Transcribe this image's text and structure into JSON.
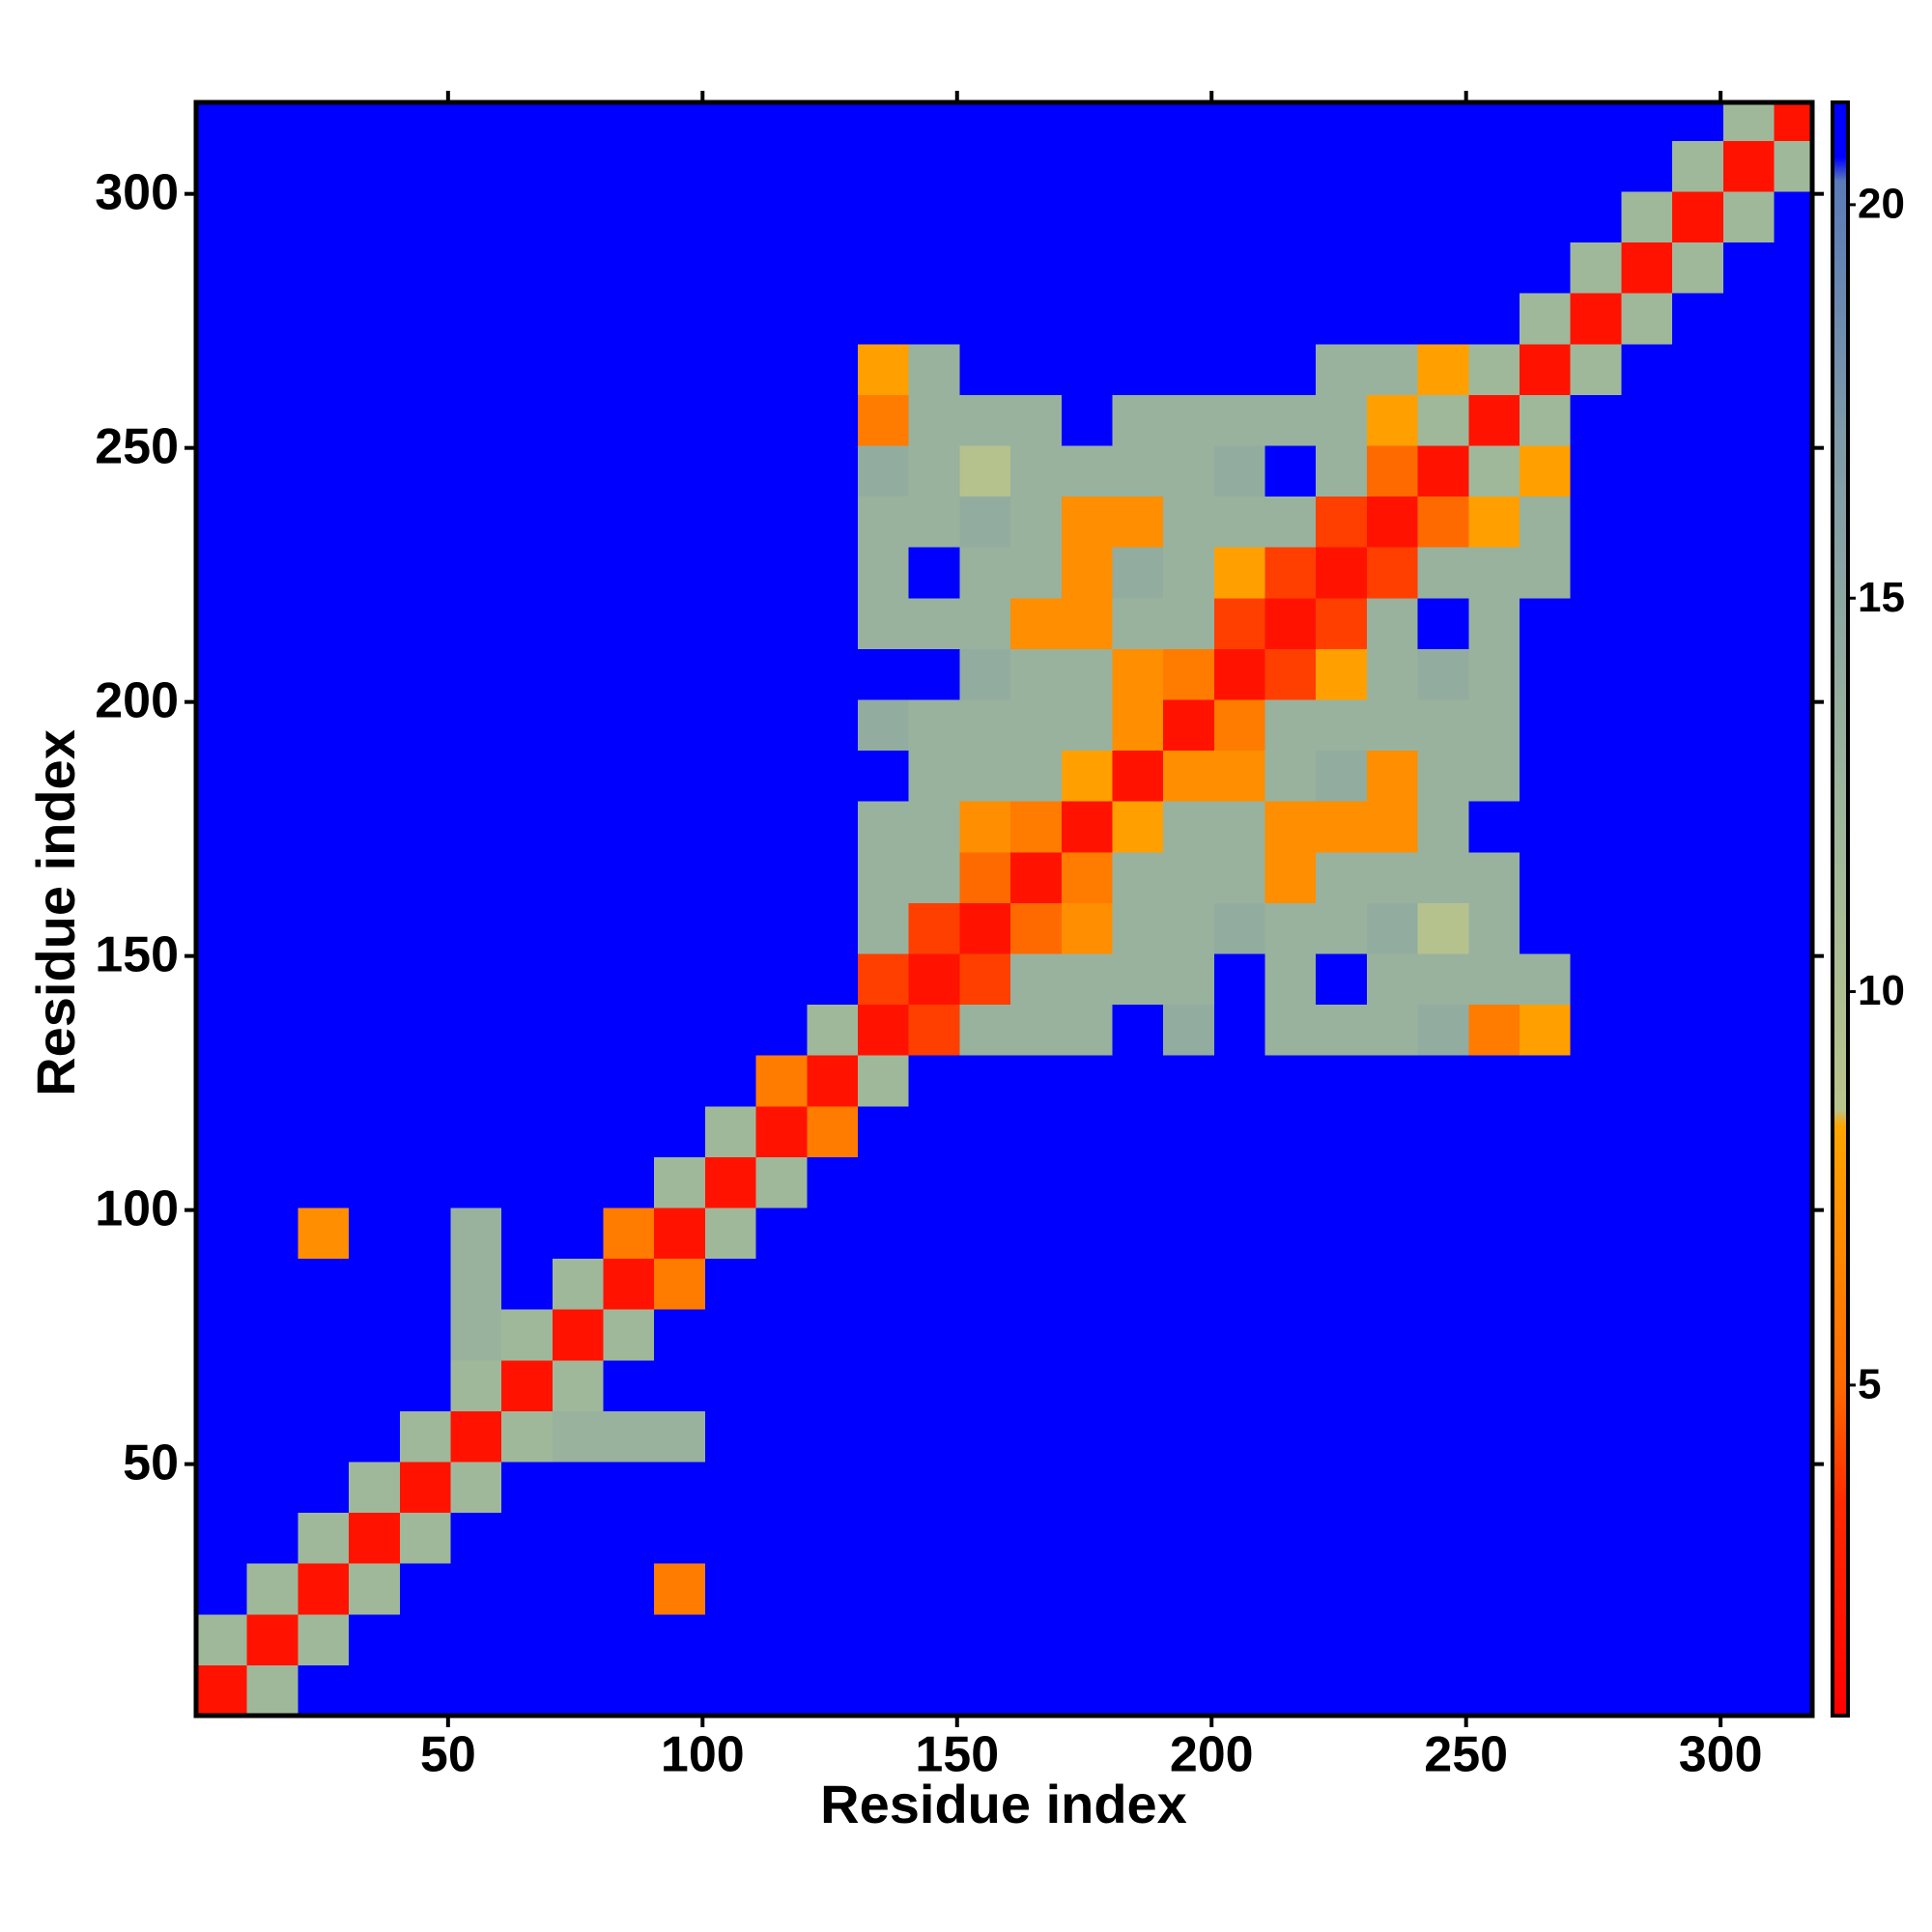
{
  "chart_data": {
    "type": "heatmap",
    "x_label": "Residue index",
    "y_label": "Residue index",
    "xbins": [
      0.5,
      10.5,
      20.5,
      30.5,
      40.5,
      50.5,
      60.5,
      70.5,
      80.5,
      90.5,
      100.5,
      110.5,
      120.5,
      130.5,
      140.5,
      150.5,
      160.5,
      170.5,
      180.5,
      190.5,
      200.5,
      210.5,
      220.5,
      230.5,
      240.5,
      250.5,
      260.5,
      270.5,
      280.5,
      290.5,
      300.5,
      310.5,
      318
    ],
    "ybins": [
      0.5,
      10.5,
      20.5,
      30.5,
      40.5,
      50.5,
      60.5,
      70.5,
      80.5,
      90.5,
      100.5,
      110.5,
      120.5,
      130.5,
      140.5,
      150.5,
      160.5,
      170.5,
      180.5,
      190.5,
      200.5,
      210.5,
      220.5,
      230.5,
      240.5,
      250.5,
      260.5,
      270.5,
      280.5,
      290.5,
      300.5,
      310.5,
      318
    ],
    "xlim": [
      0.5,
      318
    ],
    "ylim": [
      0.5,
      318
    ],
    "xticks": [
      50,
      100,
      150,
      200,
      250,
      300
    ],
    "yticks": [
      50,
      100,
      150,
      200,
      250,
      300
    ],
    "clim": [
      0.8,
      21.3
    ],
    "cticks": [
      5,
      10,
      15,
      20
    ],
    "colorscale": [
      {
        "value": 0.8,
        "color": "#ff0000"
      },
      {
        "value": 3.5,
        "color": "#ff2a00"
      },
      {
        "value": 5,
        "color": "#ff6a00"
      },
      {
        "value": 8.3,
        "color": "#ffa500"
      },
      {
        "value": 8.5,
        "color": "#b9c48c"
      },
      {
        "value": 12,
        "color": "#a0b89a"
      },
      {
        "value": 17,
        "color": "#7f9aa8"
      },
      {
        "value": 20.3,
        "color": "#5a7bb8"
      },
      {
        "value": 20.6,
        "color": "#0000ff"
      },
      {
        "value": 21.3,
        "color": "#0000ff"
      }
    ],
    "values": [
      [
        2,
        12,
        21,
        21,
        21,
        21,
        21,
        21,
        21,
        21,
        21,
        21,
        21,
        21,
        21,
        21,
        21,
        21,
        21,
        21,
        21,
        21,
        21,
        21,
        21,
        21,
        21,
        21,
        21,
        21,
        21,
        21
      ],
      [
        12,
        2,
        12,
        21,
        21,
        21,
        21,
        21,
        21,
        21,
        21,
        21,
        21,
        21,
        21,
        21,
        21,
        21,
        21,
        21,
        21,
        21,
        21,
        21,
        21,
        21,
        21,
        21,
        21,
        21,
        21,
        21
      ],
      [
        21,
        12,
        2,
        12,
        21,
        21,
        21,
        21,
        21,
        6,
        21,
        21,
        21,
        21,
        21,
        21,
        21,
        21,
        21,
        21,
        21,
        21,
        21,
        21,
        21,
        21,
        21,
        21,
        21,
        21,
        21,
        21
      ],
      [
        21,
        21,
        12,
        2,
        12,
        21,
        21,
        21,
        21,
        21,
        21,
        21,
        21,
        21,
        21,
        21,
        21,
        21,
        21,
        21,
        21,
        21,
        21,
        21,
        21,
        21,
        21,
        21,
        21,
        21,
        21,
        21
      ],
      [
        21,
        21,
        21,
        12,
        2,
        12,
        21,
        21,
        21,
        21,
        21,
        21,
        21,
        21,
        21,
        21,
        21,
        21,
        21,
        21,
        21,
        21,
        21,
        21,
        21,
        21,
        21,
        21,
        21,
        21,
        21,
        21
      ],
      [
        21,
        21,
        21,
        21,
        12,
        2,
        12,
        13,
        13,
        13,
        21,
        21,
        21,
        21,
        21,
        21,
        21,
        21,
        21,
        21,
        21,
        21,
        21,
        21,
        21,
        21,
        21,
        21,
        21,
        21,
        21,
        21
      ],
      [
        21,
        21,
        21,
        21,
        21,
        12,
        2,
        12,
        21,
        21,
        21,
        21,
        21,
        21,
        21,
        21,
        21,
        21,
        21,
        21,
        21,
        21,
        21,
        21,
        21,
        21,
        21,
        21,
        21,
        21,
        21,
        21
      ],
      [
        21,
        21,
        21,
        21,
        21,
        13,
        12,
        2,
        12,
        21,
        21,
        21,
        21,
        21,
        21,
        21,
        21,
        21,
        21,
        21,
        21,
        21,
        21,
        21,
        21,
        21,
        21,
        21,
        21,
        21,
        21,
        21
      ],
      [
        21,
        21,
        21,
        21,
        21,
        13,
        21,
        12,
        2,
        6,
        21,
        21,
        21,
        21,
        21,
        21,
        21,
        21,
        21,
        21,
        21,
        21,
        21,
        21,
        21,
        21,
        21,
        21,
        21,
        21,
        21,
        21
      ],
      [
        21,
        21,
        7,
        21,
        21,
        13,
        21,
        21,
        6,
        2,
        12,
        21,
        21,
        21,
        21,
        21,
        21,
        21,
        21,
        21,
        21,
        21,
        21,
        21,
        21,
        21,
        21,
        21,
        21,
        21,
        21,
        21
      ],
      [
        21,
        21,
        21,
        21,
        21,
        21,
        21,
        21,
        21,
        12,
        2,
        12,
        21,
        21,
        21,
        21,
        21,
        21,
        21,
        21,
        21,
        21,
        21,
        21,
        21,
        21,
        21,
        21,
        21,
        21,
        21,
        21
      ],
      [
        21,
        21,
        21,
        21,
        21,
        21,
        21,
        21,
        21,
        21,
        12,
        2,
        6,
        21,
        21,
        21,
        21,
        21,
        21,
        21,
        21,
        21,
        21,
        21,
        21,
        21,
        21,
        21,
        21,
        21,
        21,
        21
      ],
      [
        21,
        21,
        21,
        21,
        21,
        21,
        21,
        21,
        21,
        21,
        21,
        6,
        2,
        12,
        21,
        21,
        21,
        21,
        21,
        21,
        21,
        21,
        21,
        21,
        21,
        21,
        21,
        21,
        21,
        21,
        21,
        21
      ],
      [
        21,
        21,
        21,
        21,
        21,
        21,
        21,
        21,
        21,
        21,
        21,
        21,
        12,
        2,
        4,
        13,
        13,
        13,
        21,
        14,
        21,
        13,
        13,
        13,
        14,
        6,
        8,
        21,
        21,
        21,
        21,
        21
      ],
      [
        21,
        21,
        21,
        21,
        21,
        21,
        21,
        21,
        21,
        21,
        21,
        21,
        21,
        4,
        2,
        4,
        13,
        13,
        13,
        13,
        21,
        13,
        21,
        13,
        13,
        13,
        13,
        21,
        21,
        21,
        21,
        21
      ],
      [
        21,
        21,
        21,
        21,
        21,
        21,
        21,
        21,
        21,
        21,
        21,
        21,
        21,
        13,
        4,
        2,
        5,
        7,
        13,
        13,
        14,
        13,
        13,
        14,
        9,
        13,
        21,
        21,
        21,
        21,
        21,
        21
      ],
      [
        21,
        21,
        21,
        21,
        21,
        21,
        21,
        21,
        21,
        21,
        21,
        21,
        21,
        13,
        13,
        5,
        2,
        6,
        13,
        13,
        13,
        7,
        13,
        13,
        13,
        13,
        21,
        21,
        21,
        21,
        21,
        21
      ],
      [
        21,
        21,
        21,
        21,
        21,
        21,
        21,
        21,
        21,
        21,
        21,
        21,
        21,
        13,
        13,
        7,
        6,
        2,
        8,
        13,
        13,
        7,
        7,
        7,
        13,
        21,
        21,
        21,
        21,
        21,
        21,
        21
      ],
      [
        21,
        21,
        21,
        21,
        21,
        21,
        21,
        21,
        21,
        21,
        21,
        21,
        21,
        21,
        13,
        13,
        13,
        8,
        2,
        7,
        7,
        13,
        14,
        7,
        13,
        13,
        21,
        21,
        21,
        21,
        21,
        21
      ],
      [
        21,
        21,
        21,
        21,
        21,
        21,
        21,
        21,
        21,
        21,
        21,
        21,
        21,
        14,
        13,
        13,
        13,
        13,
        7,
        2,
        6,
        13,
        13,
        13,
        13,
        13,
        21,
        21,
        21,
        21,
        21,
        21
      ],
      [
        21,
        21,
        21,
        21,
        21,
        21,
        21,
        21,
        21,
        21,
        21,
        21,
        21,
        21,
        21,
        14,
        13,
        13,
        7,
        6,
        2,
        4,
        8,
        13,
        14,
        13,
        21,
        21,
        21,
        21,
        21,
        21
      ],
      [
        21,
        21,
        21,
        21,
        21,
        21,
        21,
        21,
        21,
        21,
        21,
        21,
        21,
        13,
        13,
        13,
        7,
        7,
        13,
        13,
        4,
        2,
        4,
        13,
        21,
        13,
        21,
        21,
        21,
        21,
        21,
        21
      ],
      [
        21,
        21,
        21,
        21,
        21,
        21,
        21,
        21,
        21,
        21,
        21,
        21,
        21,
        13,
        21,
        13,
        13,
        7,
        14,
        13,
        8,
        4,
        2,
        4,
        13,
        13,
        13,
        21,
        21,
        21,
        21,
        21
      ],
      [
        21,
        21,
        21,
        21,
        21,
        21,
        21,
        21,
        21,
        21,
        21,
        21,
        21,
        13,
        13,
        14,
        13,
        7,
        7,
        13,
        13,
        13,
        4,
        2,
        5,
        8,
        13,
        21,
        21,
        21,
        21,
        21
      ],
      [
        21,
        21,
        21,
        21,
        21,
        21,
        21,
        21,
        21,
        21,
        21,
        21,
        21,
        14,
        13,
        9,
        13,
        13,
        13,
        13,
        14,
        21,
        13,
        5,
        2,
        12,
        8,
        21,
        21,
        21,
        21,
        21
      ],
      [
        21,
        21,
        21,
        21,
        21,
        21,
        21,
        21,
        21,
        21,
        21,
        21,
        21,
        6,
        13,
        13,
        13,
        21,
        13,
        13,
        13,
        13,
        13,
        8,
        12,
        2,
        12,
        21,
        21,
        21,
        21,
        21
      ],
      [
        21,
        21,
        21,
        21,
        21,
        21,
        21,
        21,
        21,
        21,
        21,
        21,
        21,
        8,
        13,
        21,
        21,
        21,
        21,
        21,
        21,
        21,
        13,
        13,
        8,
        12,
        2,
        12,
        21,
        21,
        21,
        21
      ],
      [
        21,
        21,
        21,
        21,
        21,
        21,
        21,
        21,
        21,
        21,
        21,
        21,
        21,
        21,
        21,
        21,
        21,
        21,
        21,
        21,
        21,
        21,
        21,
        21,
        21,
        21,
        12,
        2,
        12,
        21,
        21,
        21
      ],
      [
        21,
        21,
        21,
        21,
        21,
        21,
        21,
        21,
        21,
        21,
        21,
        21,
        21,
        21,
        21,
        21,
        21,
        21,
        21,
        21,
        21,
        21,
        21,
        21,
        21,
        21,
        21,
        12,
        2,
        12,
        21,
        21
      ],
      [
        21,
        21,
        21,
        21,
        21,
        21,
        21,
        21,
        21,
        21,
        21,
        21,
        21,
        21,
        21,
        21,
        21,
        21,
        21,
        21,
        21,
        21,
        21,
        21,
        21,
        21,
        21,
        21,
        12,
        2,
        12,
        21
      ],
      [
        21,
        21,
        21,
        21,
        21,
        21,
        21,
        21,
        21,
        21,
        21,
        21,
        21,
        21,
        21,
        21,
        21,
        21,
        21,
        21,
        21,
        21,
        21,
        21,
        21,
        21,
        21,
        21,
        21,
        12,
        2,
        12
      ],
      [
        21,
        21,
        21,
        21,
        21,
        21,
        21,
        21,
        21,
        21,
        21,
        21,
        21,
        21,
        21,
        21,
        21,
        21,
        21,
        21,
        21,
        21,
        21,
        21,
        21,
        21,
        21,
        21,
        21,
        21,
        12,
        2
      ]
    ]
  }
}
